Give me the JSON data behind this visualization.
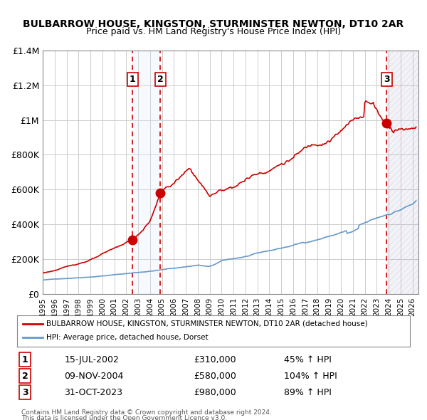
{
  "title": "BULBARROW HOUSE, KINGSTON, STURMINSTER NEWTON, DT10 2AR",
  "subtitle": "Price paid vs. HM Land Registry's House Price Index (HPI)",
  "red_label": "BULBARROW HOUSE, KINGSTON, STURMINSTER NEWTON, DT10 2AR (detached house)",
  "blue_label": "HPI: Average price, detached house, Dorset",
  "transactions": [
    {
      "num": 1,
      "date": "15-JUL-2002",
      "price": 310000,
      "pct": "45% ↑ HPI",
      "x": 2002.54
    },
    {
      "num": 2,
      "date": "09-NOV-2004",
      "price": 580000,
      "pct": "104% ↑ HPI",
      "x": 2004.86
    },
    {
      "num": 3,
      "date": "31-OCT-2023",
      "price": 980000,
      "pct": "89% ↑ HPI",
      "x": 2023.83
    }
  ],
  "ylim": [
    0,
    1400000
  ],
  "xlim_start": 1995.0,
  "xlim_end": 2026.5,
  "yticks": [
    0,
    200000,
    400000,
    600000,
    800000,
    1000000,
    1200000,
    1400000
  ],
  "ytick_labels": [
    "£0",
    "£200K",
    "£400K",
    "£600K",
    "£800K",
    "£1M",
    "£1.2M",
    "£1.4M"
  ],
  "background_color": "#ffffff",
  "plot_bg_color": "#ffffff",
  "grid_color": "#cccccc",
  "red_line_color": "#cc0000",
  "blue_line_color": "#6699cc",
  "shade_color": "#ddeeff",
  "hatch_color": "#aaaacc",
  "vline_color": "#cc0000",
  "footnote1": "Contains HM Land Registry data © Crown copyright and database right 2024.",
  "footnote2": "This data is licensed under the Open Government Licence v3.0."
}
